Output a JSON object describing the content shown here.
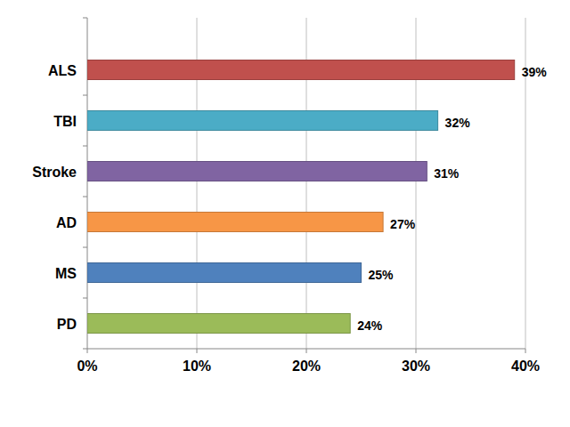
{
  "chart_data": {
    "type": "bar",
    "orientation": "horizontal",
    "categories": [
      "ALS",
      "TBI",
      "Stroke",
      "AD",
      "MS",
      "PD"
    ],
    "values": [
      39,
      32,
      31,
      27,
      25,
      24
    ],
    "value_labels": [
      "39%",
      "32%",
      "31%",
      "27%",
      "25%",
      "24%"
    ],
    "colors": [
      "#c0504d",
      "#4bacc6",
      "#8064a2",
      "#f79646",
      "#4f81bd",
      "#9bbb59"
    ],
    "xlim": [
      0,
      40
    ],
    "xticks": [
      {
        "value": 0,
        "label": "0%"
      },
      {
        "value": 10,
        "label": "10%"
      },
      {
        "value": 20,
        "label": "20%"
      },
      {
        "value": 30,
        "label": "30%"
      },
      {
        "value": 40,
        "label": "40%"
      }
    ],
    "grid": true,
    "data_labels": true
  }
}
